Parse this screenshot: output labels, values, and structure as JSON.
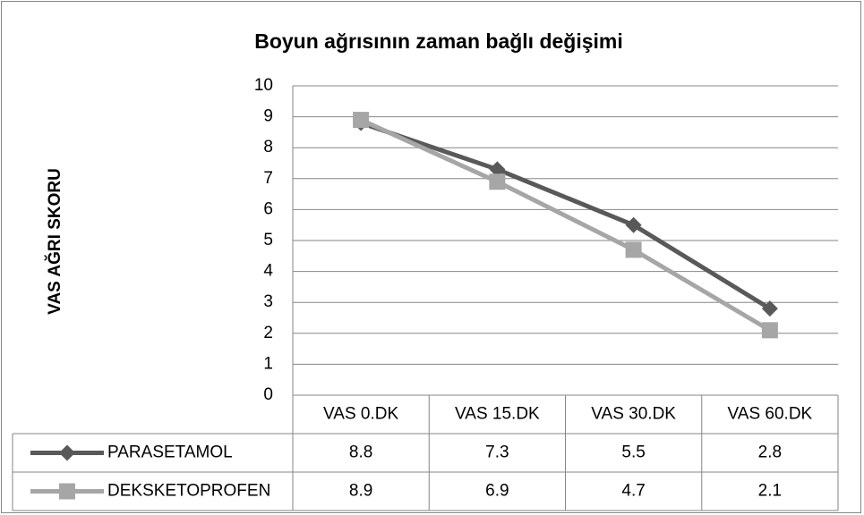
{
  "chart_data": {
    "type": "line",
    "title": "Boyun ağrısının zaman bağlı değişimi",
    "y_label": "VAS AĞRI SKORU",
    "categories": [
      "VAS 0.DK",
      "VAS 15.DK",
      "VAS 30.DK",
      "VAS 60.DK"
    ],
    "series": [
      {
        "name": "PARASETAMOL",
        "color": "#595959",
        "marker": "diamond",
        "values": [
          8.8,
          7.3,
          5.5,
          2.8
        ]
      },
      {
        "name": "DEKSKETOPROFEN",
        "color": "#a6a6a6",
        "marker": "square",
        "values": [
          8.9,
          6.9,
          4.7,
          2.1
        ]
      }
    ],
    "ylim": [
      0,
      10
    ],
    "yticks": [
      0,
      1,
      2,
      3,
      4,
      5,
      6,
      7,
      8,
      9,
      10
    ],
    "grid": true,
    "data_table": true
  }
}
